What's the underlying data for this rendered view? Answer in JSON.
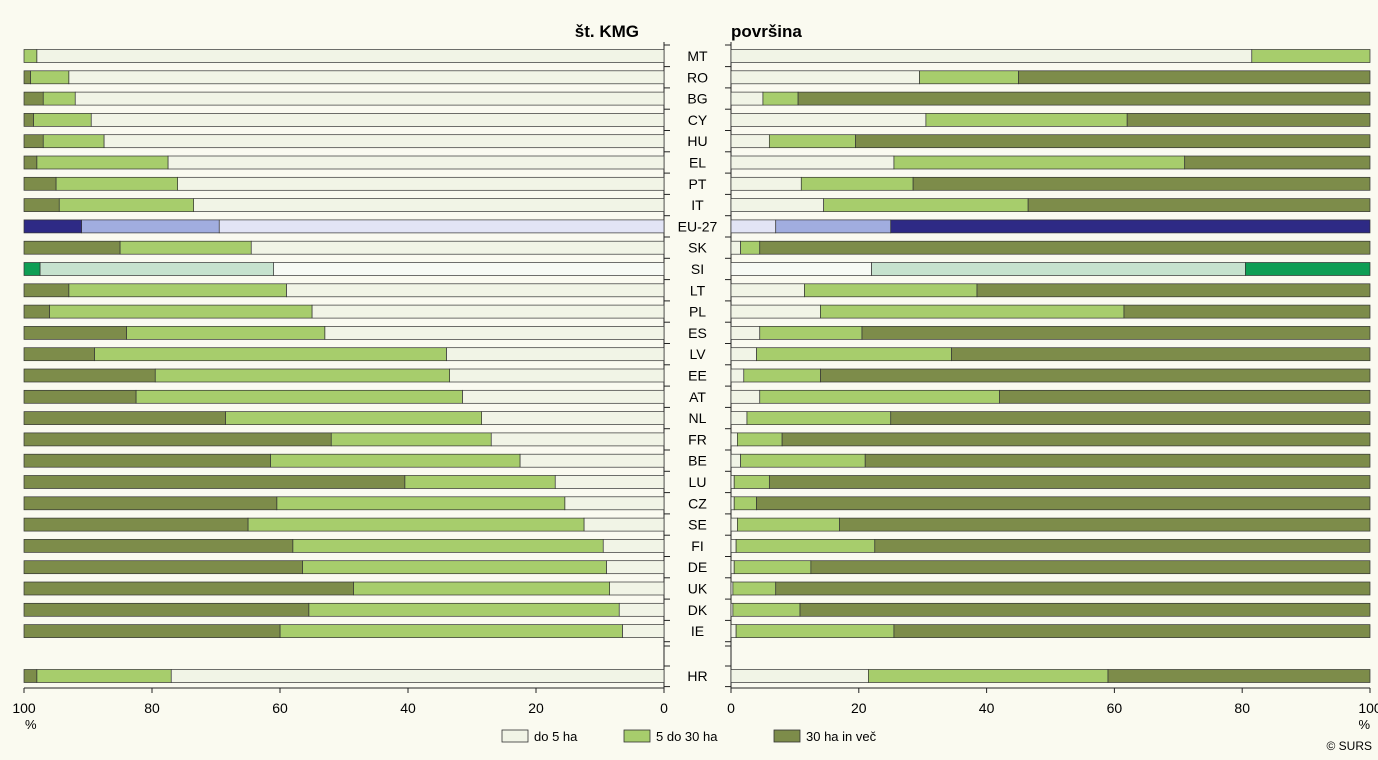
{
  "chart_data": {
    "type": "bar",
    "stacked": true,
    "orientation": "horizontal",
    "panels": [
      {
        "title": "št. KMG",
        "axis_direction": "reversed",
        "xlim": [
          0,
          100
        ]
      },
      {
        "title": "površina",
        "axis_direction": "normal",
        "xlim": [
          0,
          100
        ]
      }
    ],
    "ticks": [
      "100",
      "80",
      "60",
      "40",
      "20",
      "0"
    ],
    "ticks_right": [
      "0",
      "20",
      "40",
      "60",
      "80",
      "100"
    ],
    "unit": "%",
    "series": [
      {
        "name": "do 5 ha",
        "color": "#f1f4e6"
      },
      {
        "name": "5 do 30 ha",
        "color": "#a7cd6c"
      },
      {
        "name": "30 ha in več",
        "color": "#7d8c4a"
      }
    ],
    "highlight_colors": {
      "EU-27": [
        "#e2e4f5",
        "#a1addf",
        "#2e2a85"
      ],
      "SI": [
        "#f7faf5",
        "#c6e2ce",
        "#0e9e54"
      ]
    },
    "categories": [
      "MT",
      "RO",
      "BG",
      "CY",
      "HU",
      "EL",
      "PT",
      "IT",
      "EU-27",
      "SK",
      "SI",
      "LT",
      "PL",
      "ES",
      "LV",
      "EE",
      "AT",
      "NL",
      "FR",
      "BE",
      "LU",
      "CZ",
      "SE",
      "FI",
      "DE",
      "UK",
      "DK",
      "IE",
      "HR"
    ],
    "farms": [
      [
        98,
        2,
        0
      ],
      [
        93,
        6,
        1
      ],
      [
        92,
        5,
        3
      ],
      [
        89.5,
        9,
        1.5
      ],
      [
        87.5,
        9.5,
        3
      ],
      [
        77.5,
        20.5,
        2
      ],
      [
        76,
        19,
        5
      ],
      [
        73.5,
        21,
        5.5
      ],
      [
        69.5,
        21.5,
        9
      ],
      [
        64.5,
        20.5,
        15
      ],
      [
        61,
        36.5,
        2.5
      ],
      [
        59,
        34,
        7
      ],
      [
        55,
        41,
        4
      ],
      [
        53,
        31,
        16
      ],
      [
        34,
        55,
        11
      ],
      [
        33.5,
        46,
        20.5
      ],
      [
        31.5,
        51,
        17.5
      ],
      [
        28.5,
        40,
        31.5
      ],
      [
        27,
        25,
        48
      ],
      [
        22.5,
        39,
        38.5
      ],
      [
        17,
        23.5,
        59.5
      ],
      [
        15.5,
        45,
        39.5
      ],
      [
        12.5,
        52.5,
        35
      ],
      [
        9.5,
        48.5,
        42
      ],
      [
        9,
        47.5,
        43.5
      ],
      [
        8.5,
        40,
        51.5
      ],
      [
        7,
        48.5,
        44.5
      ],
      [
        6.5,
        53.5,
        40
      ],
      [
        77,
        21,
        2
      ]
    ],
    "area": [
      [
        81.5,
        18.5,
        0
      ],
      [
        29.5,
        15.5,
        55
      ],
      [
        5,
        5.5,
        89.5
      ],
      [
        30.5,
        31.5,
        38
      ],
      [
        6,
        13.5,
        80.5
      ],
      [
        25.5,
        45.5,
        29
      ],
      [
        11,
        17.5,
        71.5
      ],
      [
        14.5,
        32,
        53.5
      ],
      [
        7,
        18,
        75
      ],
      [
        1.5,
        3,
        95.5
      ],
      [
        22,
        58.5,
        19.5
      ],
      [
        11.5,
        27,
        61.5
      ],
      [
        14,
        47.5,
        38.5
      ],
      [
        4.5,
        16,
        79.5
      ],
      [
        4,
        30.5,
        65.5
      ],
      [
        2,
        12,
        86
      ],
      [
        4.5,
        37.5,
        58
      ],
      [
        2.5,
        22.5,
        75
      ],
      [
        1,
        7,
        92
      ],
      [
        1.5,
        19.5,
        79
      ],
      [
        0.5,
        5.5,
        94
      ],
      [
        0.5,
        3.5,
        96
      ],
      [
        1,
        16,
        83
      ],
      [
        0.8,
        21.7,
        77.5
      ],
      [
        0.5,
        12,
        87.5
      ],
      [
        0.3,
        6.7,
        93
      ],
      [
        0.3,
        10.5,
        89.2
      ],
      [
        0.8,
        24.7,
        74.5
      ],
      [
        21.5,
        37.5,
        41
      ]
    ],
    "credit": "© SURS"
  }
}
